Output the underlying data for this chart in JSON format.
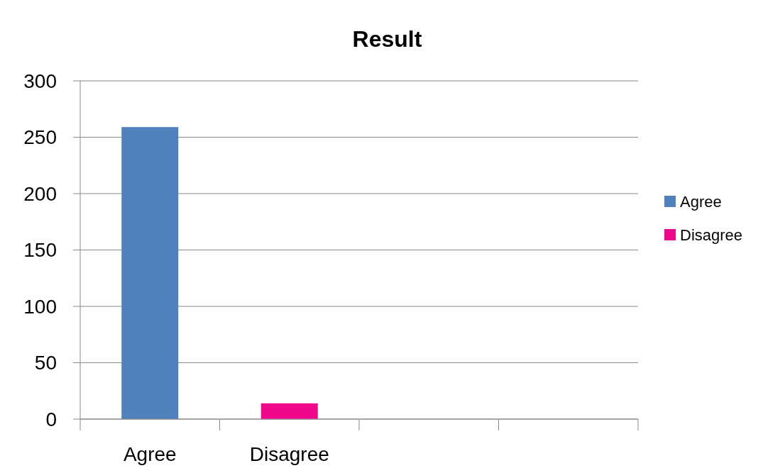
{
  "chart_data": {
    "type": "bar",
    "title": "Result",
    "categories": [
      "Agree",
      "Disagree",
      null,
      null
    ],
    "series": [
      {
        "name": "Agree",
        "color": "#4f81bd",
        "values": [
          259,
          null,
          null,
          null
        ]
      },
      {
        "name": "Disagree",
        "color": "#f0088c",
        "values": [
          null,
          14,
          null,
          null
        ]
      }
    ],
    "ylim": [
      0,
      300
    ],
    "yticks": [
      0,
      50,
      100,
      150,
      200,
      250,
      300
    ],
    "grid": "y",
    "legend": "right"
  }
}
